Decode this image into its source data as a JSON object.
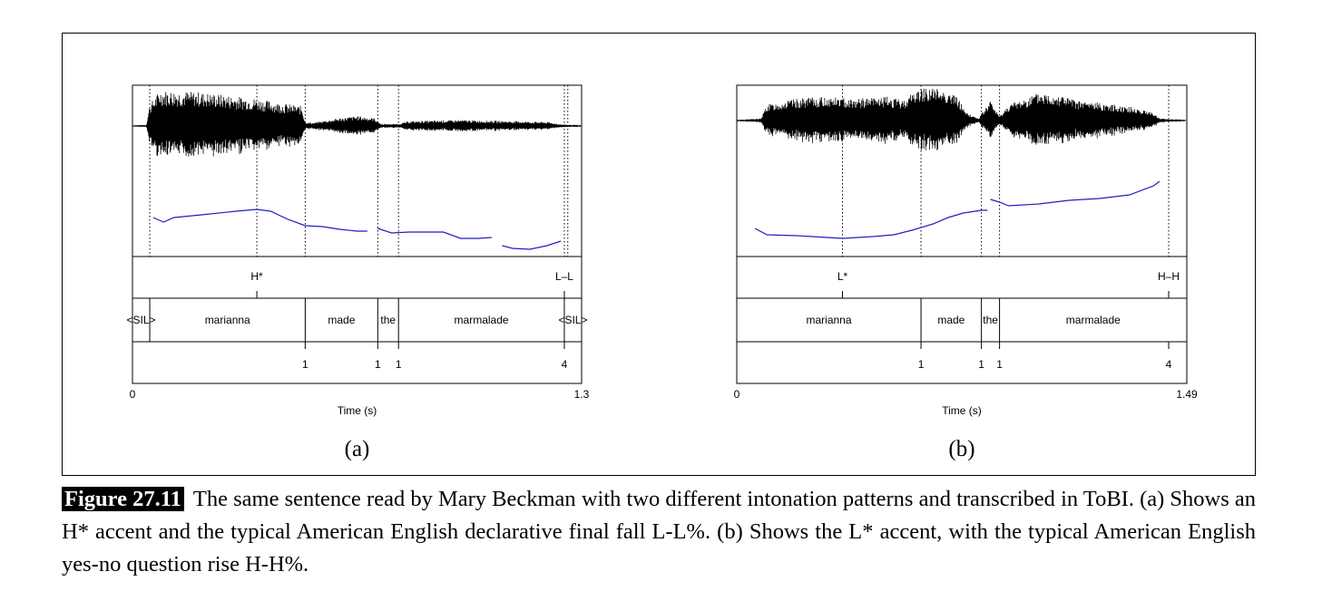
{
  "panels": [
    {
      "id": "a",
      "letter": "(a)",
      "time_label": "Time (s)",
      "time_start": "0",
      "time_end": "1.3",
      "duration": 1.3,
      "tones": [
        {
          "t": 0.36,
          "label": "H*"
        },
        {
          "t": 1.25,
          "label": "L–L"
        }
      ],
      "words": [
        {
          "start": 0.0,
          "end": 0.05,
          "label": "<SIL>"
        },
        {
          "start": 0.05,
          "end": 0.5,
          "label": "marianna"
        },
        {
          "start": 0.5,
          "end": 0.71,
          "label": "made"
        },
        {
          "start": 0.71,
          "end": 0.77,
          "label": "the"
        },
        {
          "start": 0.77,
          "end": 1.25,
          "label": "marmalade"
        },
        {
          "start": 1.25,
          "end": 1.3,
          "label": "<SIL>"
        }
      ],
      "breaks": [
        {
          "t": 0.5,
          "label": "1"
        },
        {
          "t": 0.71,
          "label": "1"
        },
        {
          "t": 0.77,
          "label": "1"
        },
        {
          "t": 1.25,
          "label": "4"
        }
      ],
      "dotted_lines": [
        0.05,
        0.36,
        0.5,
        0.71,
        0.77,
        1.25,
        1.26
      ]
    },
    {
      "id": "b",
      "letter": "(b)",
      "time_label": "Time (s)",
      "time_start": "0",
      "time_end": "1.49",
      "duration": 1.49,
      "tones": [
        {
          "t": 0.35,
          "label": "L*"
        },
        {
          "t": 1.43,
          "label": "H–H"
        }
      ],
      "words": [
        {
          "start": 0.0,
          "end": 0.61,
          "label": "marianna"
        },
        {
          "start": 0.61,
          "end": 0.81,
          "label": "made"
        },
        {
          "start": 0.81,
          "end": 0.87,
          "label": "the"
        },
        {
          "start": 0.87,
          "end": 1.49,
          "label": "marmalade"
        }
      ],
      "breaks": [
        {
          "t": 0.61,
          "label": "1"
        },
        {
          "t": 0.81,
          "label": "1"
        },
        {
          "t": 0.87,
          "label": "1"
        },
        {
          "t": 1.43,
          "label": "4"
        }
      ],
      "dotted_lines": [
        0.35,
        0.61,
        0.81,
        0.87,
        1.43
      ]
    }
  ],
  "caption": {
    "label": "Figure 27.11",
    "text": "The same sentence read by Mary Beckman with two different intonation patterns and transcribed in ToBI. (a) Shows an H* accent and the typical American English declarative final fall L-L%. (b) Shows the L* accent, with the typical American English yes-no question rise H-H%."
  },
  "colors": {
    "waveform": "#000000",
    "pitch_track": "#1f1fbf"
  }
}
